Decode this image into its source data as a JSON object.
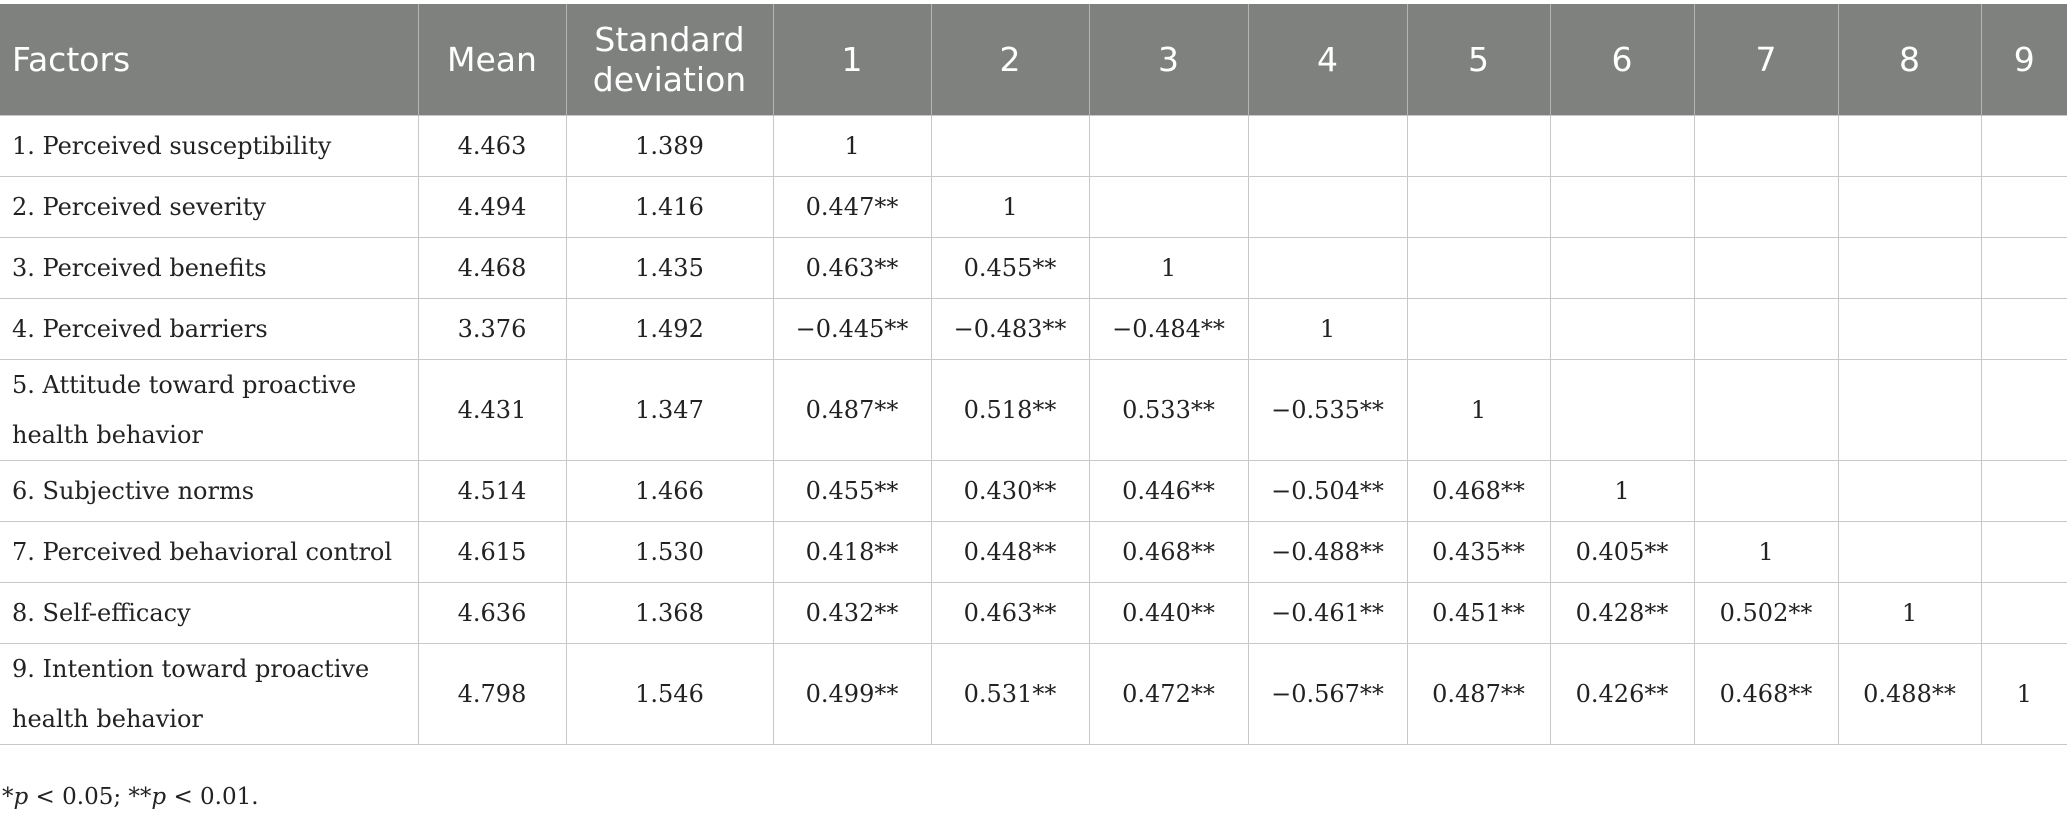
{
  "table": {
    "header": [
      "Factors",
      "Mean",
      "Standard deviation",
      "1",
      "2",
      "3",
      "4",
      "5",
      "6",
      "7",
      "8",
      "9"
    ],
    "rows": [
      {
        "label": "1. Perceived susceptibility",
        "mean": "4.463",
        "sd": "1.389",
        "r": [
          "1"
        ]
      },
      {
        "label": "2. Perceived severity",
        "mean": "4.494",
        "sd": "1.416",
        "r": [
          "0.447**",
          "1"
        ]
      },
      {
        "label": "3. Perceived benefits",
        "mean": "4.468",
        "sd": "1.435",
        "r": [
          "0.463**",
          "0.455**",
          "1"
        ]
      },
      {
        "label": "4. Perceived barriers",
        "mean": "3.376",
        "sd": "1.492",
        "r": [
          "−0.445**",
          "−0.483**",
          "−0.484**",
          "1"
        ]
      },
      {
        "label": "5. Attitude toward proactive health behavior",
        "mean": "4.431",
        "sd": "1.347",
        "r": [
          "0.487**",
          "0.518**",
          "0.533**",
          "−0.535**",
          "1"
        ]
      },
      {
        "label": "6. Subjective norms",
        "mean": "4.514",
        "sd": "1.466",
        "r": [
          "0.455**",
          "0.430**",
          "0.446**",
          "−0.504**",
          "0.468**",
          "1"
        ]
      },
      {
        "label": "7. Perceived behavioral control",
        "mean": "4.615",
        "sd": "1.530",
        "r": [
          "0.418**",
          "0.448**",
          "0.468**",
          "−0.488**",
          "0.435**",
          "0.405**",
          "1"
        ]
      },
      {
        "label": "8. Self-efficacy",
        "mean": "4.636",
        "sd": "1.368",
        "r": [
          "0.432**",
          "0.463**",
          "0.440**",
          "−0.461**",
          "0.451**",
          "0.428**",
          "0.502**",
          "1"
        ]
      },
      {
        "label": "9. Intention toward proactive health behavior",
        "mean": "4.798",
        "sd": "1.546",
        "r": [
          "0.499**",
          "0.531**",
          "0.472**",
          "−0.567**",
          "0.487**",
          "0.426**",
          "0.468**",
          "0.488**",
          "1"
        ]
      }
    ]
  },
  "footnote": [
    "*",
    "p",
    " < 0.05; **",
    "p",
    " < 0.01."
  ]
}
